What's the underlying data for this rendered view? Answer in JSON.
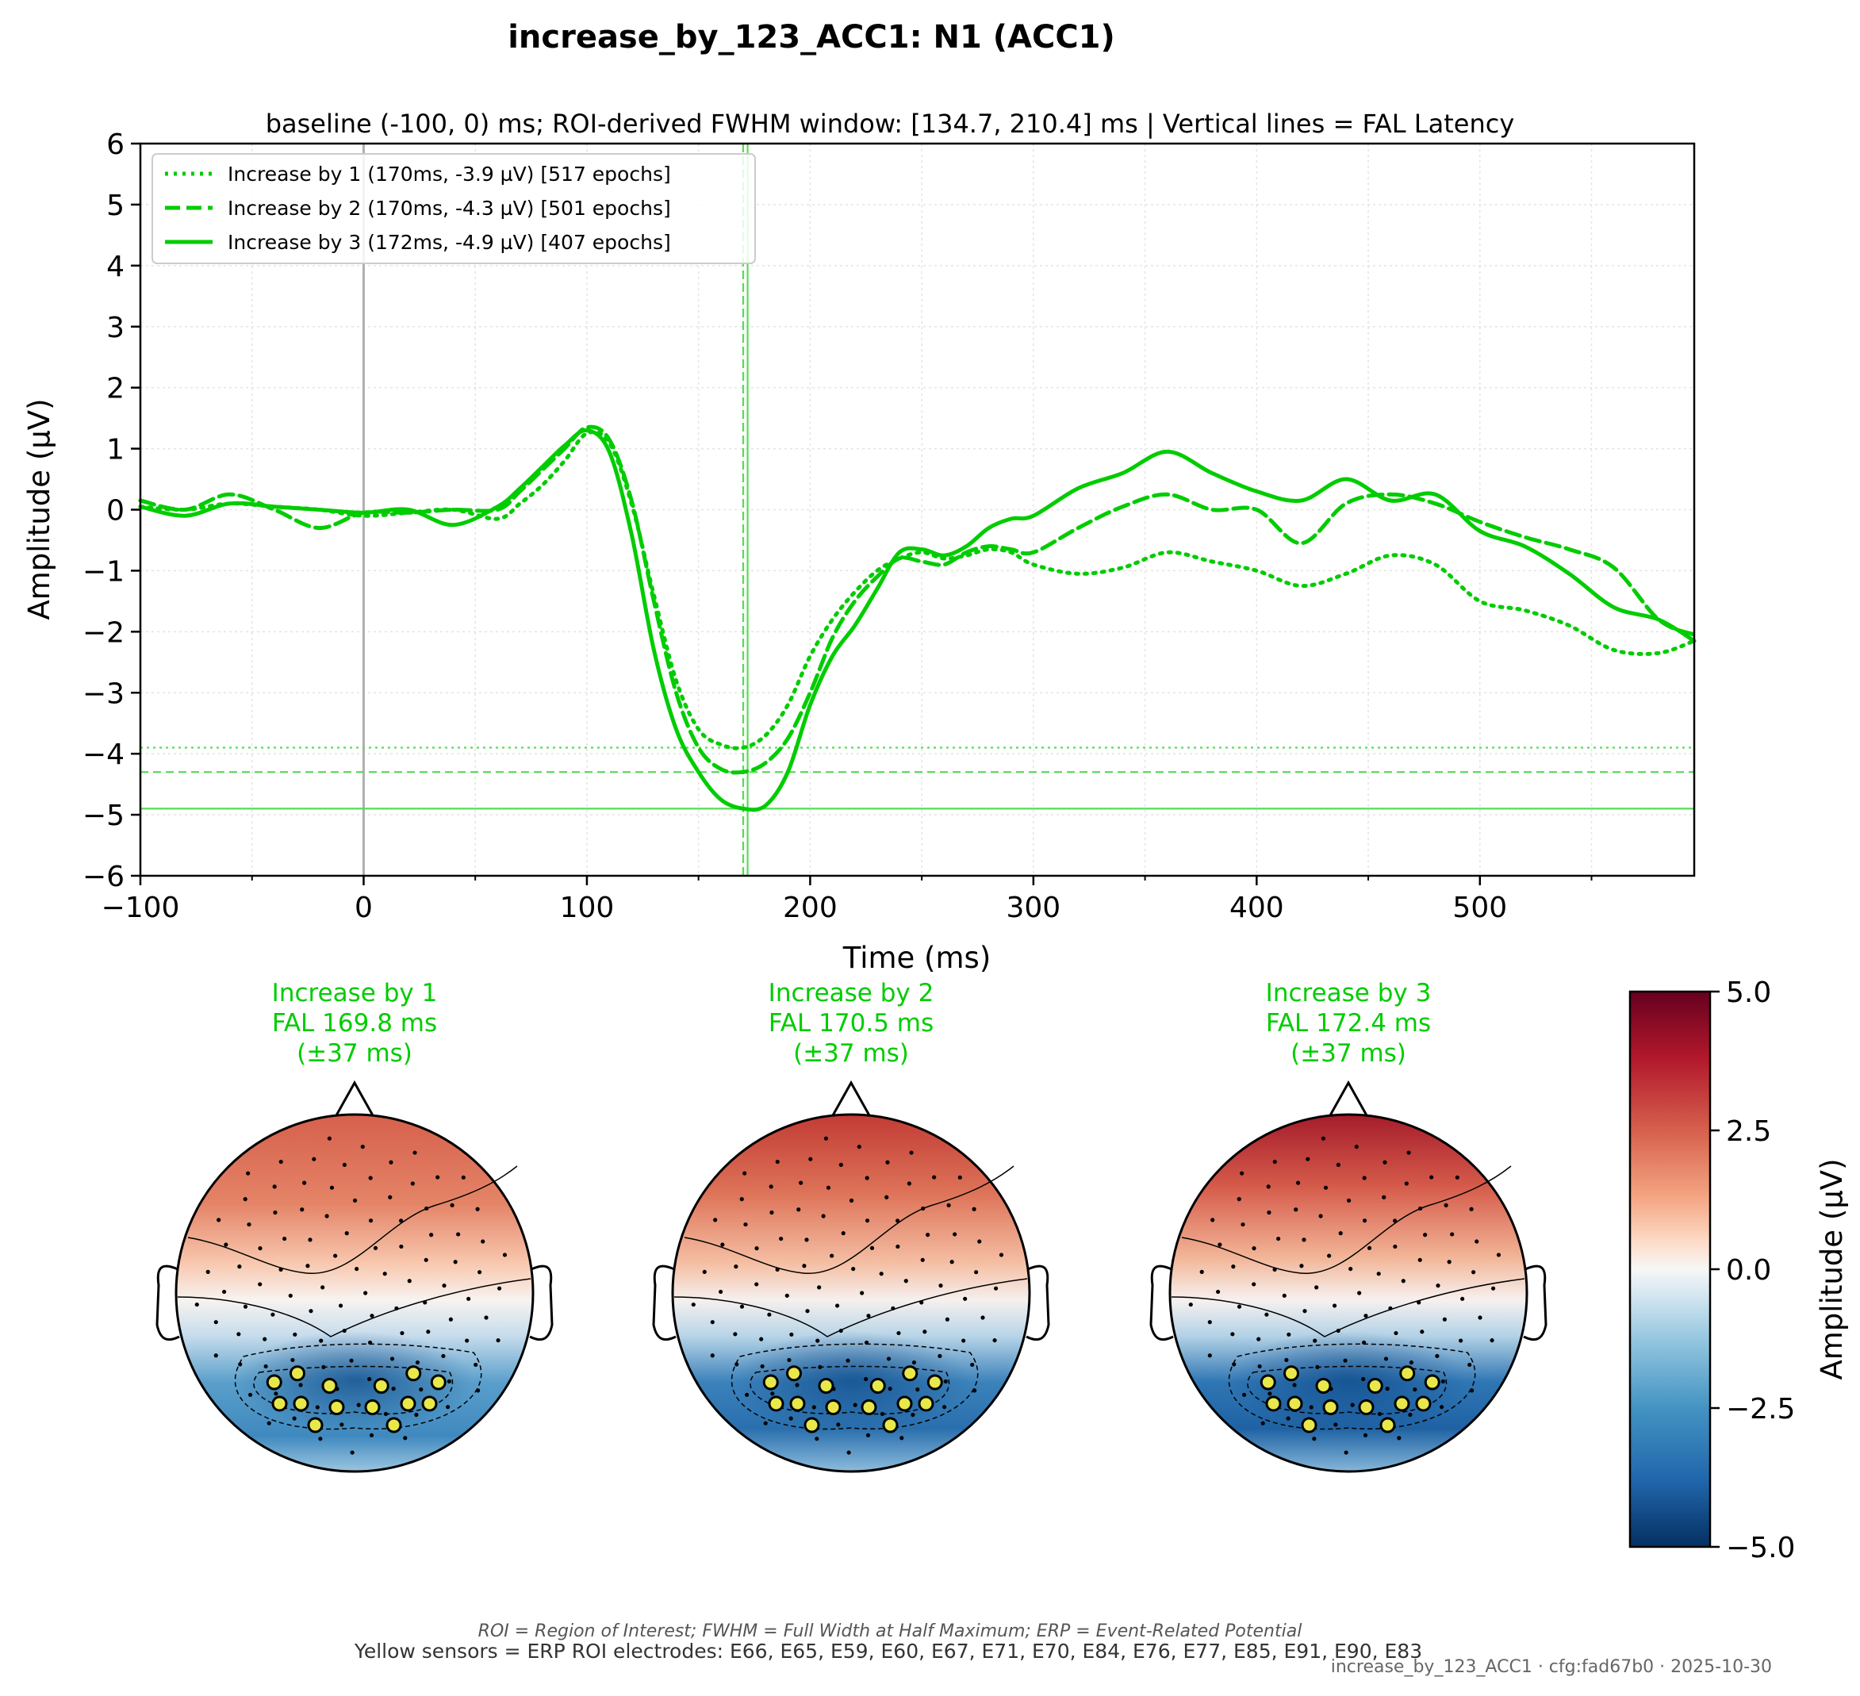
{
  "figure": {
    "title": "increase_by_123_ACC1: N1 (ACC1)",
    "subtitle": "baseline (-100, 0) ms; ROI-derived FWHM window: [134.7, 210.4] ms | Vertical lines = FAL Latency",
    "footnote_abbrev": "ROI = Region of Interest; FWHM = Full Width at Half Maximum; ERP = Event-Related Potential",
    "footnote_sensors": "Yellow sensors = ERP ROI electrodes: E66, E65, E59, E60, E67, E71, E70, E84, E76, E77, E85, E91, E90, E83",
    "stamp": "increase_by_123_ACC1 · cfg:fad67b0 · 2025-10-30",
    "colors": {
      "series": "#00cc00",
      "zero_line": "#b0b0b0",
      "grid": "#e6e6e6"
    }
  },
  "chart_data": [
    {
      "type": "line",
      "xlabel": "Time (ms)",
      "ylabel": "Amplitude (µV)",
      "xlim": [
        -100,
        596
      ],
      "ylim": [
        -6,
        6
      ],
      "xticks": [
        -100,
        0,
        100,
        200,
        300,
        400,
        500
      ],
      "yticks": [
        6,
        5,
        4,
        3,
        2,
        1,
        0,
        -1,
        -2,
        -3,
        -4,
        -5,
        -6
      ],
      "grid": true,
      "legend_position": "top-left",
      "vline_zero": 0,
      "series": [
        {
          "name": "Increase by 1 (170ms, -3.9 µV) [517 epochs]",
          "style": "dotted",
          "peak_latency": 170,
          "peak_amplitude": -3.9,
          "x": [
            -100,
            -80,
            -60,
            -40,
            -20,
            0,
            20,
            40,
            60,
            70,
            80,
            90,
            100,
            110,
            120,
            130,
            140,
            150,
            160,
            170,
            180,
            190,
            200,
            210,
            220,
            230,
            240,
            250,
            260,
            270,
            280,
            290,
            300,
            320,
            340,
            360,
            380,
            400,
            420,
            440,
            460,
            480,
            500,
            520,
            540,
            560,
            580,
            596
          ],
          "y": [
            0.05,
            0.0,
            0.1,
            0.05,
            0.0,
            -0.1,
            -0.05,
            0.0,
            -0.15,
            0.1,
            0.4,
            0.8,
            1.25,
            1.1,
            0.1,
            -1.4,
            -2.8,
            -3.6,
            -3.85,
            -3.9,
            -3.7,
            -3.2,
            -2.4,
            -1.8,
            -1.35,
            -1.0,
            -0.8,
            -0.7,
            -0.8,
            -0.75,
            -0.65,
            -0.7,
            -0.9,
            -1.05,
            -0.95,
            -0.7,
            -0.85,
            -1.0,
            -1.25,
            -1.05,
            -0.75,
            -0.9,
            -1.5,
            -1.65,
            -1.9,
            -2.3,
            -2.35,
            -2.15
          ]
        },
        {
          "name": "Increase by 2 (170ms, -4.3 µV) [501 epochs]",
          "style": "dashed",
          "peak_latency": 170,
          "peak_amplitude": -4.3,
          "x": [
            -100,
            -80,
            -60,
            -40,
            -20,
            0,
            20,
            40,
            60,
            70,
            80,
            90,
            100,
            110,
            120,
            130,
            140,
            150,
            160,
            170,
            180,
            190,
            200,
            210,
            220,
            230,
            240,
            250,
            260,
            270,
            280,
            290,
            300,
            320,
            340,
            360,
            380,
            400,
            420,
            440,
            460,
            480,
            500,
            520,
            540,
            560,
            580,
            596
          ],
          "y": [
            0.15,
            0.0,
            0.25,
            0.0,
            -0.3,
            -0.05,
            -0.05,
            0.0,
            0.0,
            0.3,
            0.65,
            1.0,
            1.35,
            1.15,
            0.15,
            -1.5,
            -3.0,
            -3.9,
            -4.25,
            -4.3,
            -4.15,
            -3.75,
            -3.0,
            -2.1,
            -1.5,
            -1.1,
            -0.8,
            -0.85,
            -0.9,
            -0.7,
            -0.6,
            -0.65,
            -0.7,
            -0.3,
            0.05,
            0.25,
            0.0,
            0.0,
            -0.55,
            0.1,
            0.25,
            0.1,
            -0.2,
            -0.45,
            -0.65,
            -0.95,
            -1.8,
            -2.05
          ]
        },
        {
          "name": "Increase by 3 (172ms, -4.9 µV) [407 epochs]",
          "style": "solid",
          "peak_latency": 172,
          "peak_amplitude": -4.9,
          "x": [
            -100,
            -80,
            -60,
            -40,
            -20,
            0,
            20,
            40,
            60,
            70,
            80,
            90,
            100,
            110,
            120,
            130,
            140,
            150,
            160,
            170,
            180,
            190,
            200,
            210,
            220,
            230,
            240,
            250,
            260,
            270,
            280,
            290,
            300,
            320,
            340,
            360,
            380,
            400,
            420,
            440,
            460,
            480,
            500,
            520,
            540,
            560,
            580,
            596
          ],
          "y": [
            0.05,
            -0.1,
            0.1,
            0.05,
            0.0,
            -0.05,
            0.0,
            -0.25,
            0.05,
            0.35,
            0.7,
            1.05,
            1.3,
            0.95,
            -0.4,
            -2.3,
            -3.6,
            -4.3,
            -4.75,
            -4.9,
            -4.85,
            -4.3,
            -3.2,
            -2.4,
            -1.9,
            -1.3,
            -0.7,
            -0.65,
            -0.75,
            -0.6,
            -0.3,
            -0.15,
            -0.1,
            0.35,
            0.6,
            0.95,
            0.6,
            0.3,
            0.15,
            0.5,
            0.15,
            0.25,
            -0.35,
            -0.6,
            -1.05,
            -1.6,
            -1.8,
            -2.15
          ]
        }
      ]
    },
    {
      "type": "heatmap",
      "colorbar_label": "Amplitude (µV)",
      "colorbar_ticks": [
        "5.0",
        "2.5",
        "0.0",
        "−2.5",
        "−5.0"
      ],
      "clim": [
        -5,
        5
      ],
      "colormap": "RdBu_r",
      "topomaps": [
        {
          "label": "Increase by 1",
          "fal_text": "FAL 169.8 ms",
          "window_text": "(±37 ms)"
        },
        {
          "label": "Increase by 2",
          "fal_text": "FAL 170.5 ms",
          "window_text": "(±37 ms)"
        },
        {
          "label": "Increase by 3",
          "fal_text": "FAL 172.4 ms",
          "window_text": "(±37 ms)"
        }
      ]
    }
  ]
}
